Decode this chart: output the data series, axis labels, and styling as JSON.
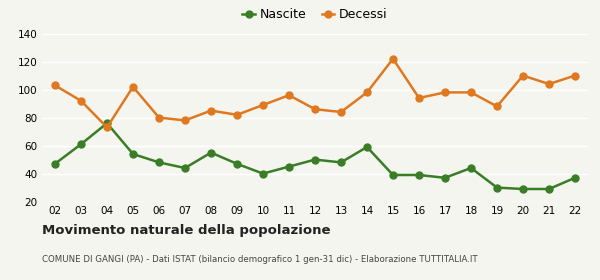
{
  "years": [
    "02",
    "03",
    "04",
    "05",
    "06",
    "07",
    "08",
    "09",
    "10",
    "11",
    "12",
    "13",
    "14",
    "15",
    "16",
    "17",
    "18",
    "19",
    "20",
    "21",
    "22"
  ],
  "nascite": [
    47,
    61,
    76,
    54,
    48,
    44,
    55,
    47,
    40,
    45,
    50,
    48,
    59,
    39,
    39,
    37,
    44,
    30,
    29,
    29,
    37
  ],
  "decessi": [
    103,
    92,
    73,
    102,
    80,
    78,
    85,
    82,
    89,
    96,
    86,
    84,
    98,
    122,
    94,
    98,
    98,
    88,
    110,
    104,
    110
  ],
  "nascite_color": "#3a7d27",
  "decessi_color": "#e07820",
  "bg_color": "#f5f5f0",
  "grid_color": "#ffffff",
  "ylim": [
    20,
    140
  ],
  "yticks": [
    20,
    40,
    60,
    80,
    100,
    120,
    140
  ],
  "title": "Movimento naturale della popolazione",
  "subtitle": "COMUNE DI GANGI (PA) - Dati ISTAT (bilancio demografico 1 gen-31 dic) - Elaborazione TUTTITALIA.IT",
  "legend_nascite": "Nascite",
  "legend_decessi": "Decessi",
  "marker_size": 5,
  "line_width": 1.8
}
